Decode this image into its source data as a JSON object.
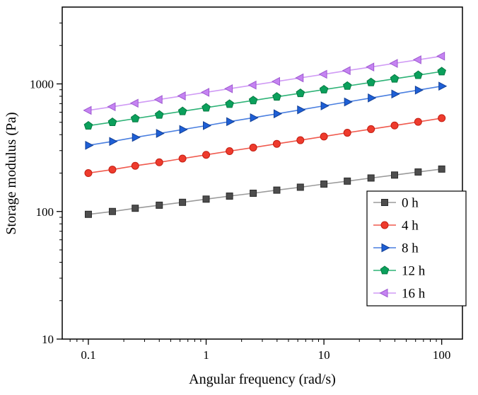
{
  "chart_data": {
    "type": "line",
    "title": "",
    "xlabel": "Angular frequency (rad/s)",
    "ylabel": "Storage modulus (Pa)",
    "x_scale": "log",
    "y_scale": "log",
    "xlim": [
      0.06,
      150
    ],
    "ylim": [
      10,
      4000
    ],
    "x_ticks": [
      0.1,
      1,
      10,
      100
    ],
    "y_ticks": [
      10,
      100,
      1000
    ],
    "grid": false,
    "legend_position": "inside-right-lower",
    "frame_color": "#000000",
    "x": [
      0.1,
      0.16,
      0.25,
      0.4,
      0.63,
      1,
      1.58,
      2.51,
      3.98,
      6.31,
      10,
      15.8,
      25.1,
      39.8,
      63.1,
      100
    ],
    "series": [
      {
        "name": "0 h",
        "marker": "square",
        "color": "#4d4d4d",
        "edge": "#2b2b2b",
        "line_color": "#9b9b9b",
        "values": [
          95,
          100,
          106,
          112,
          118,
          125,
          132,
          139,
          147,
          155,
          164,
          173,
          183,
          193,
          204,
          215
        ]
      },
      {
        "name": "4 h",
        "marker": "circle",
        "color": "#ee3b2d",
        "edge": "#c41e12",
        "line_color": "#f05a4e",
        "values": [
          200,
          213,
          228,
          243,
          260,
          278,
          297,
          317,
          339,
          362,
          387,
          414,
          442,
          472,
          504,
          539
        ]
      },
      {
        "name": "8 h",
        "marker": "triangle-right",
        "color": "#1e5fd6",
        "edge": "#124097",
        "line_color": "#4a7fe0",
        "values": [
          330,
          354,
          381,
          409,
          439,
          471,
          506,
          543,
          583,
          626,
          673,
          722,
          776,
          833,
          894,
          960
        ]
      },
      {
        "name": "12 h",
        "marker": "pentagon",
        "color": "#0ba05c",
        "edge": "#067a42",
        "line_color": "#2eb377",
        "values": [
          470,
          501,
          535,
          572,
          610,
          651,
          695,
          742,
          792,
          845,
          902,
          963,
          1028,
          1097,
          1171,
          1250
        ]
      },
      {
        "name": "16 h",
        "marker": "triangle-left",
        "color": "#c583f2",
        "edge": "#9e5ad0",
        "line_color": "#d09bf5",
        "values": [
          620,
          662,
          706,
          754,
          805,
          859,
          917,
          979,
          1045,
          1115,
          1190,
          1271,
          1356,
          1448,
          1546,
          1650
        ]
      }
    ]
  }
}
